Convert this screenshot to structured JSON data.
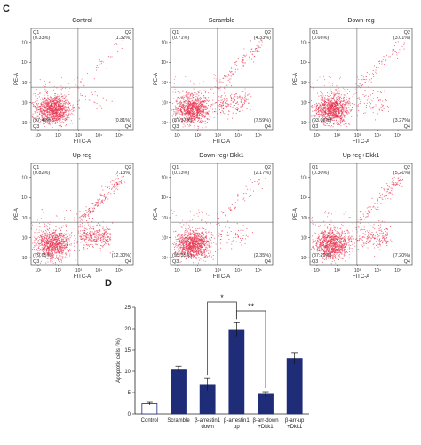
{
  "panels": {
    "c_label": "C",
    "d_label": "D"
  },
  "chart_data": [
    {
      "type": "scatter",
      "panel": "C",
      "x_label": "FITC-A",
      "y_label": "PE-A",
      "x_scale": "log",
      "y_scale": "log",
      "x_tick_labels": [
        "10¹",
        "10²",
        "10³",
        "10⁴",
        "10⁵"
      ],
      "y_tick_labels": [
        "10¹",
        "10²",
        "10³",
        "10⁴",
        "10⁵"
      ],
      "quadrant_labels": [
        "Q1",
        "Q2",
        "Q3",
        "Q4"
      ],
      "point_color": "#e8334f",
      "plots": [
        {
          "title": "Control",
          "q1": "0.33%",
          "q2": "1.32%",
          "q3": "97.49%",
          "q4": "0.81%"
        },
        {
          "title": "Scramble",
          "q1": "0.71%",
          "q2": "4.33%",
          "q3": "87.37%",
          "q4": "7.59%"
        },
        {
          "title": "Down-reg",
          "q1": "0.66%",
          "q2": "3.01%",
          "q3": "93.06%",
          "q4": "3.27%"
        },
        {
          "title": "Up-reg",
          "q1": "0.82%",
          "q2": "7.13%",
          "q3": "79.65%",
          "q4": "12.30%"
        },
        {
          "title": "Down-reg+Dkk1",
          "q1": "0.13%",
          "q2": "2.17%",
          "q3": "95.35%",
          "q4": "2.35%"
        },
        {
          "title": "Up-reg+Dkk1",
          "q1": "0.30%",
          "q2": "5.21%",
          "q3": "87.29%",
          "q4": "7.20%"
        }
      ]
    },
    {
      "type": "bar",
      "panel": "D",
      "ylabel": "Apoptotic cells (%)",
      "ylim": [
        0,
        25
      ],
      "yticks": [
        0,
        5,
        10,
        15,
        20,
        25
      ],
      "categories": [
        [
          "Control"
        ],
        [
          "Scramble"
        ],
        [
          "β-arrestin1",
          "down"
        ],
        [
          "β-arrestin1",
          "up"
        ],
        [
          "β-arr-down",
          "+Dkk1"
        ],
        [
          "β-arr-up",
          "+Dkk1"
        ]
      ],
      "values": [
        2.4,
        10.5,
        6.9,
        19.8,
        4.6,
        13.0
      ],
      "errors": [
        0.3,
        0.7,
        1.4,
        1.6,
        0.6,
        1.4
      ],
      "bar_colors": [
        "#ffffff",
        "#1f2c78",
        "#1f2c78",
        "#1f2c78",
        "#1f2c78",
        "#1f2c78"
      ],
      "significance": [
        {
          "from": 2,
          "to": 3,
          "label": "*"
        },
        {
          "from": 3,
          "to": 4,
          "label": "**"
        }
      ]
    }
  ]
}
